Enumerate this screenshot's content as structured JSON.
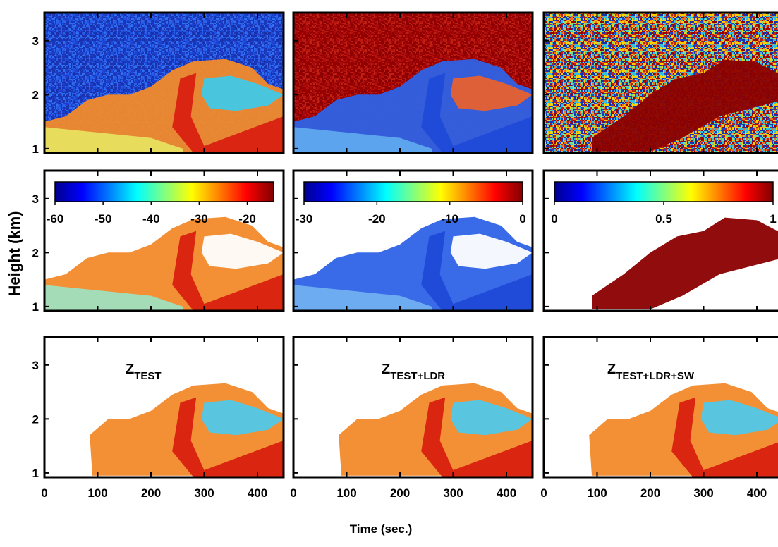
{
  "figure": {
    "x_label": "Time (sec.)",
    "y_label": "Height (km)",
    "xlim": [
      0,
      449
    ],
    "xticks": [
      0,
      100,
      200,
      300,
      400
    ],
    "ylim": [
      0.92,
      3.52
    ],
    "yticks": [
      1,
      2,
      3
    ],
    "colorbars": [
      {
        "lim": [
          -60,
          -14.5
        ],
        "ticks": [
          -60,
          -50,
          -40,
          -30,
          -20
        ]
      },
      {
        "lim": [
          -30,
          0
        ],
        "ticks": [
          -30,
          -20,
          -10,
          0
        ]
      },
      {
        "lim": [
          0,
          1
        ],
        "ticks": [
          0,
          0.5,
          1
        ]
      }
    ],
    "panel_labels": [
      {
        "symbol": "Z",
        "subscript": "TEST"
      },
      {
        "symbol": "Z",
        "subscript": "TEST+LDR"
      },
      {
        "symbol": "Z",
        "subscript": "TEST+LDR+SW"
      }
    ]
  }
}
